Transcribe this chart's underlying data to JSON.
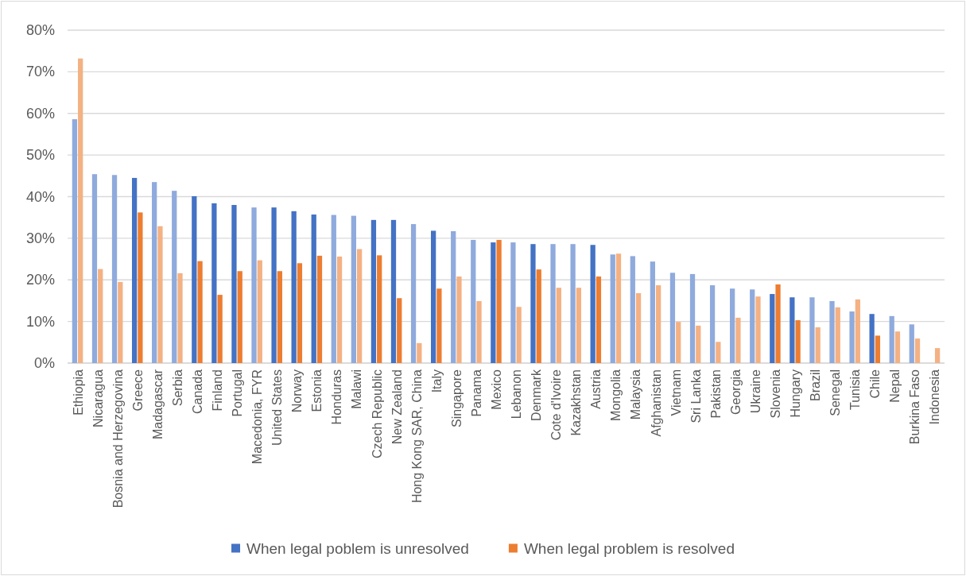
{
  "chart_data": {
    "type": "bar",
    "categories": [
      "Ethiopia",
      "Nicaragua",
      "Bosnia and Herzegovina",
      "Greece",
      "Madagascar",
      "Serbia",
      "Canada",
      "Finland",
      "Portugal",
      "Macedonia, FYR",
      "United States",
      "Norway",
      "Estonia",
      "Honduras",
      "Malawi",
      "Czech Republic",
      "New Zealand",
      "Hong Kong SAR, China",
      "Italy",
      "Singapore",
      "Panama",
      "Mexico",
      "Lebanon",
      "Denmark",
      "Cote d'Ivoire",
      "Kazakhstan",
      "Austria",
      "Mongolia",
      "Malaysia",
      "Afghanistan",
      "Vietnam",
      "Sri Lanka",
      "Pakistan",
      "Georgia",
      "Ukraine",
      "Slovenia",
      "Hungary",
      "Brazil",
      "Senegal",
      "Tunisia",
      "Chile",
      "Nepal",
      "Burkina Faso",
      "Indonesia"
    ],
    "series": [
      {
        "name": "When legal poblem is unresolved",
        "color": "#4472c4",
        "values": [
          58.6,
          45.4,
          45.2,
          44.5,
          43.5,
          41.4,
          40.1,
          38.4,
          38.0,
          37.4,
          37.4,
          36.5,
          35.7,
          35.6,
          35.4,
          34.4,
          34.4,
          33.4,
          31.8,
          31.7,
          29.6,
          29.0,
          29.0,
          28.6,
          28.6,
          28.6,
          28.4,
          26.1,
          25.7,
          24.4,
          21.7,
          21.4,
          18.7,
          17.9,
          17.7,
          16.6,
          15.8,
          15.8,
          14.9,
          12.4,
          11.8,
          11.3,
          9.3,
          null
        ],
        "colors": [
          "#8faadc",
          "#8faadc",
          "#8faadc",
          "#4472c4",
          "#8faadc",
          "#8faadc",
          "#4472c4",
          "#4472c4",
          "#4472c4",
          "#8faadc",
          "#4472c4",
          "#4472c4",
          "#4472c4",
          "#8faadc",
          "#8faadc",
          "#4472c4",
          "#4472c4",
          "#8faadc",
          "#4472c4",
          "#8faadc",
          "#8faadc",
          "#4472c4",
          "#8faadc",
          "#4472c4",
          "#8faadc",
          "#8faadc",
          "#4472c4",
          "#8faadc",
          "#8faadc",
          "#8faadc",
          "#8faadc",
          "#8faadc",
          "#8faadc",
          "#8faadc",
          "#8faadc",
          "#4472c4",
          "#4472c4",
          "#8faadc",
          "#8faadc",
          "#8faadc",
          "#4472c4",
          "#8faadc",
          "#8faadc",
          null
        ]
      },
      {
        "name": "When legal problem is resolved",
        "color": "#ed7d31",
        "values": [
          73.2,
          22.6,
          19.5,
          36.2,
          32.9,
          21.6,
          24.5,
          16.4,
          22.1,
          24.7,
          22.1,
          24.0,
          25.8,
          25.6,
          27.4,
          25.9,
          15.6,
          4.8,
          17.9,
          20.8,
          14.9,
          29.6,
          13.5,
          22.5,
          18.1,
          18.1,
          20.8,
          26.3,
          16.8,
          18.7,
          9.9,
          9.0,
          5.1,
          10.9,
          16.0,
          18.9,
          10.3,
          8.6,
          13.4,
          15.3,
          6.6,
          7.6,
          5.9,
          3.6
        ],
        "colors": [
          "#f4b183",
          "#f4b183",
          "#f4b183",
          "#ed7d31",
          "#f4b183",
          "#f4b183",
          "#ed7d31",
          "#ed7d31",
          "#ed7d31",
          "#f4b183",
          "#ed7d31",
          "#ed7d31",
          "#ed7d31",
          "#f4b183",
          "#f4b183",
          "#ed7d31",
          "#ed7d31",
          "#f4b183",
          "#ed7d31",
          "#f4b183",
          "#f4b183",
          "#ed7d31",
          "#f4b183",
          "#ed7d31",
          "#f4b183",
          "#f4b183",
          "#ed7d31",
          "#f4b183",
          "#f4b183",
          "#f4b183",
          "#f4b183",
          "#f4b183",
          "#f4b183",
          "#f4b183",
          "#f4b183",
          "#ed7d31",
          "#ed7d31",
          "#f4b183",
          "#f4b183",
          "#f4b183",
          "#ed7d31",
          "#f4b183",
          "#f4b183",
          "#f4b183"
        ]
      }
    ],
    "ylim": [
      0,
      80
    ],
    "yticks": [
      {
        "value": 0,
        "label": "0%"
      },
      {
        "value": 10,
        "label": "10%"
      },
      {
        "value": 20,
        "label": "20%"
      },
      {
        "value": 30,
        "label": "30%"
      },
      {
        "value": 40,
        "label": "40%"
      },
      {
        "value": 50,
        "label": "50%"
      },
      {
        "value": 60,
        "label": "60%"
      },
      {
        "value": 70,
        "label": "70%"
      },
      {
        "value": 80,
        "label": "80%"
      }
    ],
    "grid": "y",
    "legend": "bottom"
  }
}
